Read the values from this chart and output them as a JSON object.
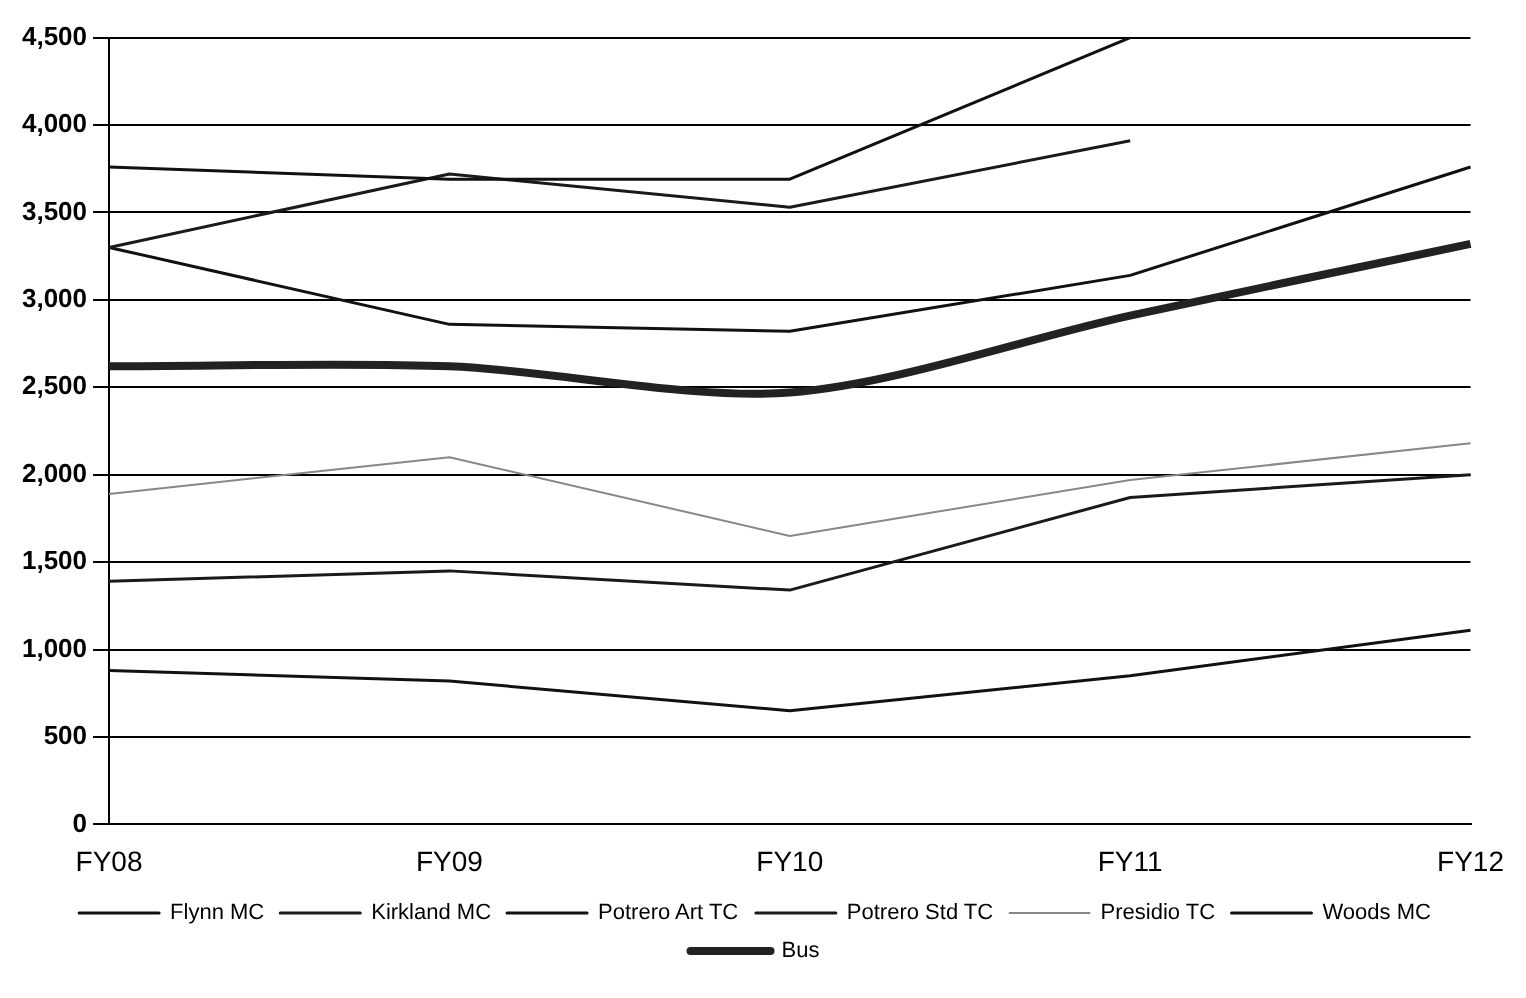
{
  "chart_data": {
    "type": "line",
    "categories": [
      "FY08",
      "FY09",
      "FY10",
      "FY11",
      "FY12"
    ],
    "series": [
      {
        "name": "Flynn MC",
        "color": "#111111",
        "values": [
          880,
          820,
          650,
          850,
          1110
        ]
      },
      {
        "name": "Kirkland MC",
        "color": "#1a1a1a",
        "values": [
          1390,
          1450,
          1340,
          1870,
          2000
        ]
      },
      {
        "name": "Potrero Art TC",
        "color": "#111111",
        "values": [
          3760,
          3690,
          3690,
          4500,
          null
        ]
      },
      {
        "name": "Potrero Std TC",
        "color": "#1a1a1a",
        "values": [
          3300,
          3720,
          3530,
          3910,
          null
        ]
      },
      {
        "name": "Presidio TC",
        "color": "#888888",
        "values": [
          1890,
          2100,
          1650,
          1970,
          2180
        ]
      },
      {
        "name": "Woods MC",
        "color": "#111111",
        "values": [
          3300,
          2860,
          2820,
          3140,
          3760
        ]
      },
      {
        "name": "Bus",
        "color": "#222222",
        "values": [
          2620,
          2620,
          2470,
          2910,
          3320
        ]
      }
    ],
    "ylim": [
      0,
      4500
    ],
    "yticks": [
      {
        "value": 0,
        "label": "0"
      },
      {
        "value": 500,
        "label": "500"
      },
      {
        "value": 1000,
        "label": "1,000"
      },
      {
        "value": 1500,
        "label": "1,500"
      },
      {
        "value": 2000,
        "label": "2,000"
      },
      {
        "value": 2500,
        "label": "2,500"
      },
      {
        "value": 3000,
        "label": "3,000"
      },
      {
        "value": 3500,
        "label": "3,500"
      },
      {
        "value": 4000,
        "label": "4,000"
      },
      {
        "value": 4500,
        "label": "4,500"
      }
    ],
    "grid": "y",
    "legend": "bottom",
    "marker": "none",
    "line_style": "solid"
  }
}
